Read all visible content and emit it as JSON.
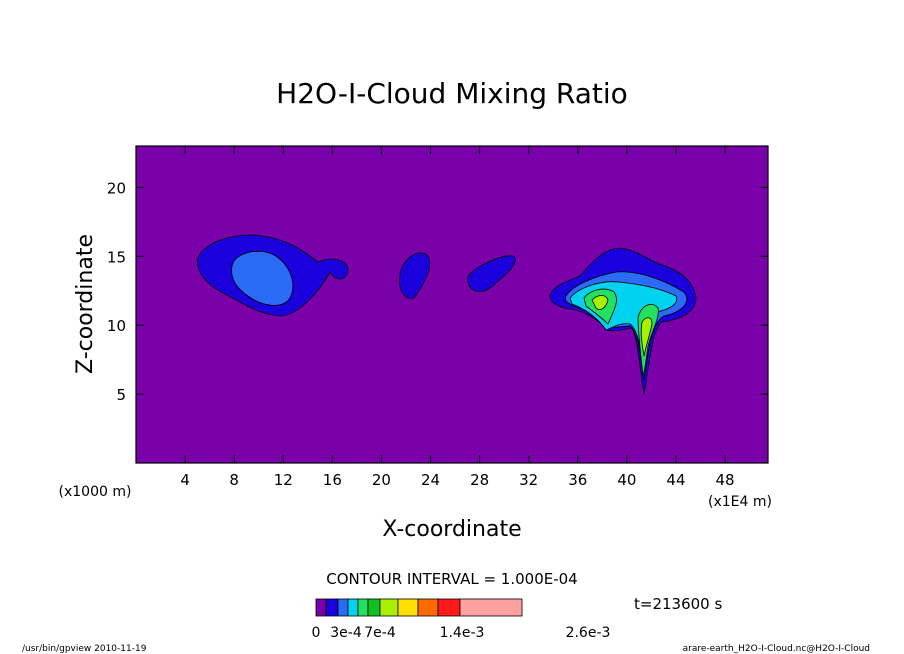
{
  "chart_data": {
    "type": "contour",
    "title": "H2O-I-Cloud Mixing Ratio",
    "xlabel": "X-coordinate",
    "ylabel": "Z-coordinate",
    "x_unit_left": "(x1000 m)",
    "x_unit_right": "(x1E4 m)",
    "xlim": [
      0,
      51.5
    ],
    "ylim": [
      0,
      23
    ],
    "x_ticks": [
      4,
      8,
      12,
      16,
      20,
      24,
      28,
      32,
      36,
      40,
      44,
      48
    ],
    "y_ticks": [
      5,
      10,
      15,
      20
    ],
    "background_color": "#7a00aa",
    "levels_colors": [
      {
        "level": "low",
        "color": "#1a00dd"
      },
      {
        "level": "mid-low",
        "color": "#2a6cf5"
      },
      {
        "level": "mid",
        "color": "#00d2f0"
      },
      {
        "level": "mid-high",
        "color": "#22e060"
      },
      {
        "level": "high",
        "color": "#a8f000"
      }
    ],
    "contour_interval": "CONTOUR INTERVAL = 1.000E-04",
    "time_label": "t=213600 s",
    "colorbar": {
      "colors": [
        "#7a00aa",
        "#1a00dd",
        "#2a6cf5",
        "#00d2f0",
        "#22e060",
        "#10c020",
        "#a8f000",
        "#ffe000",
        "#ff6a00",
        "#ff1a1a",
        "#ffa0a0"
      ],
      "tick_labels": [
        "0",
        "3e-4",
        "7e-4",
        "1.4e-3",
        "2.6e-3"
      ]
    },
    "footer_left": "/usr/bin/gpview   2010-11-19",
    "footer_right": "arare-earth_H2O-I-Cloud.nc@H2O-I-Cloud"
  }
}
